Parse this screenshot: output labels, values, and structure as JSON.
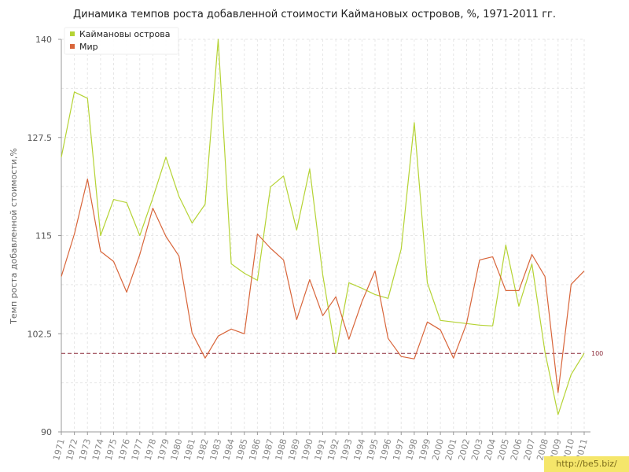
{
  "chart_data": {
    "type": "line",
    "title": "Динамика темпов роста добавленной стоимости Каймановых островов, %, 1971-2011 гг.",
    "ylabel": "Темп роста добавленной стоимости,%",
    "xlabel": "",
    "ylim": [
      90,
      140
    ],
    "yticks": [
      "90",
      "102.5",
      "115",
      "127.5",
      "140"
    ],
    "grid": true,
    "legend": "top-left",
    "reference_line": {
      "value": 100,
      "label": "100",
      "color": "#8b2b3a"
    },
    "x": [
      "1971",
      "1972",
      "1973",
      "1974",
      "1975",
      "1976",
      "1977",
      "1978",
      "1979",
      "1980",
      "1981",
      "1982",
      "1983",
      "1984",
      "1985",
      "1986",
      "1987",
      "1988",
      "1989",
      "1990",
      "1991",
      "1992",
      "1993",
      "1994",
      "1995",
      "1996",
      "1997",
      "1998",
      "1999",
      "2000",
      "2001",
      "2002",
      "2003",
      "2004",
      "2005",
      "2006",
      "2007",
      "2008",
      "2009",
      "2010",
      "2011"
    ],
    "series": [
      {
        "name": "Каймановы острова",
        "color": "#b5d334",
        "values": [
          125,
          133.3,
          132.5,
          115,
          119.6,
          119.2,
          115,
          119.8,
          125,
          120,
          116.6,
          119,
          140,
          111.4,
          110.2,
          109.3,
          121.2,
          122.6,
          115.7,
          123.5,
          110,
          100,
          109,
          108.3,
          107.5,
          107,
          113.3,
          129.4,
          109,
          104.2,
          104,
          103.8,
          103.6,
          103.5,
          113.8,
          106,
          111.4,
          100.2,
          92.2,
          97.3,
          100
        ],
        "stroke": "#b5d334"
      },
      {
        "name": "Мир",
        "color": "#d8653a",
        "values": [
          109.8,
          115.2,
          122.2,
          113,
          111.7,
          107.8,
          112.6,
          118.5,
          114.9,
          112.4,
          102.6,
          99.4,
          102.2,
          103.1,
          102.5,
          115.2,
          113.4,
          111.9,
          104.3,
          109.4,
          104.8,
          107.2,
          101.8,
          106.6,
          110.5,
          101.9,
          99.6,
          99.3,
          104,
          103,
          99.4,
          103.8,
          111.9,
          112.3,
          108,
          108,
          112.6,
          109.8,
          95,
          108.8,
          110.5
        ]
      }
    ]
  },
  "watermark": "http://be5.biz/"
}
